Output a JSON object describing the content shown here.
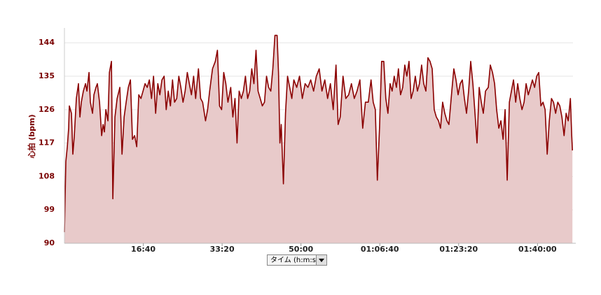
{
  "chart_data": {
    "type": "line",
    "y_label": "心拍 (bpm)",
    "x_selector": "タイム (h:m:s)",
    "color": "#8b0000",
    "fill_color": "#e8caca",
    "grid": true,
    "ylim": [
      90,
      148
    ],
    "yticks": [
      90,
      99,
      108,
      117,
      126,
      135,
      144
    ],
    "xlim": [
      0,
      6450
    ],
    "xticks": [
      {
        "value": 1000,
        "label": "16:40"
      },
      {
        "value": 2000,
        "label": "33:20"
      },
      {
        "value": 3000,
        "label": "50:00"
      },
      {
        "value": 4000,
        "label": "01:06:40"
      },
      {
        "value": 5000,
        "label": "01:23:20"
      },
      {
        "value": 6000,
        "label": "01:40:00"
      }
    ],
    "x": [
      0,
      18,
      36,
      53,
      62,
      89,
      107,
      125,
      151,
      178,
      196,
      214,
      240,
      267,
      285,
      312,
      329,
      356,
      374,
      400,
      418,
      445,
      472,
      490,
      507,
      525,
      552,
      570,
      596,
      614,
      641,
      668,
      703,
      730,
      757,
      783,
      810,
      837,
      863,
      890,
      917,
      943,
      970,
      997,
      1023,
      1050,
      1077,
      1104,
      1130,
      1157,
      1184,
      1210,
      1237,
      1264,
      1291,
      1317,
      1344,
      1371,
      1397,
      1424,
      1451,
      1477,
      1504,
      1531,
      1558,
      1584,
      1611,
      1638,
      1664,
      1700,
      1727,
      1753,
      1789,
      1816,
      1842,
      1878,
      1914,
      1940,
      1967,
      1994,
      2020,
      2047,
      2074,
      2109,
      2136,
      2163,
      2189,
      2216,
      2243,
      2270,
      2296,
      2323,
      2350,
      2376,
      2403,
      2430,
      2456,
      2483,
      2510,
      2537,
      2563,
      2590,
      2617,
      2643,
      2670,
      2697,
      2715,
      2733,
      2750,
      2777,
      2804,
      2830,
      2857,
      2884,
      2910,
      2946,
      2982,
      3017,
      3053,
      3088,
      3124,
      3160,
      3195,
      3231,
      3266,
      3302,
      3338,
      3373,
      3409,
      3444,
      3471,
      3498,
      3533,
      3569,
      3605,
      3640,
      3676,
      3711,
      3747,
      3783,
      3818,
      3854,
      3889,
      3916,
      3943,
      3969,
      3996,
      4023,
      4050,
      4076,
      4103,
      4130,
      4156,
      4183,
      4210,
      4236,
      4263,
      4290,
      4317,
      4343,
      4370,
      4397,
      4423,
      4450,
      4477,
      4503,
      4530,
      4557,
      4584,
      4610,
      4637,
      4664,
      4690,
      4717,
      4744,
      4770,
      4797,
      4824,
      4851,
      4877,
      4913,
      4939,
      4966,
      4993,
      5020,
      5046,
      5073,
      5100,
      5126,
      5153,
      5180,
      5207,
      5233,
      5260,
      5287,
      5313,
      5340,
      5376,
      5402,
      5429,
      5456,
      5482,
      5509,
      5536,
      5563,
      5589,
      5616,
      5643,
      5669,
      5696,
      5723,
      5749,
      5776,
      5803,
      5830,
      5856,
      5883,
      5910,
      5936,
      5963,
      5990,
      6016,
      6043,
      6070,
      6096,
      6123,
      6150,
      6177,
      6203,
      6230,
      6257,
      6283,
      6310,
      6337,
      6363,
      6390,
      6417,
      6434,
      6443
    ],
    "values": [
      93,
      112,
      116,
      121,
      127,
      125,
      114,
      119,
      129,
      133,
      124,
      128,
      131,
      133,
      131,
      136,
      128,
      125,
      130,
      132,
      133,
      128,
      119,
      122,
      120,
      126,
      123,
      136,
      139,
      102,
      124,
      129,
      132,
      114,
      124,
      128,
      132,
      134,
      118,
      119,
      116,
      130,
      129,
      131,
      133,
      132,
      134,
      129,
      135,
      125,
      133,
      130,
      134,
      135,
      126,
      131,
      127,
      134,
      128,
      129,
      135,
      132,
      128,
      131,
      136,
      133,
      130,
      135,
      129,
      137,
      129,
      128,
      123,
      126,
      131,
      137,
      139,
      142,
      127,
      126,
      136,
      133,
      128,
      132,
      124,
      129,
      117,
      131,
      129,
      131,
      135,
      129,
      131,
      137,
      133,
      142,
      131,
      129,
      127,
      128,
      135,
      132,
      131,
      137,
      146,
      146,
      136,
      117,
      122,
      106,
      125,
      135,
      132,
      129,
      134,
      132,
      135,
      129,
      133,
      132,
      134,
      131,
      135,
      137,
      131,
      134,
      129,
      133,
      126,
      138,
      122,
      124,
      135,
      129,
      130,
      133,
      129,
      131,
      134,
      121,
      128,
      128,
      134,
      128,
      126,
      107,
      121,
      139,
      139,
      129,
      125,
      133,
      131,
      135,
      132,
      137,
      130,
      132,
      138,
      135,
      139,
      129,
      131,
      135,
      131,
      133,
      138,
      133,
      131,
      140,
      139,
      137,
      126,
      124,
      123,
      121,
      128,
      125,
      123,
      122,
      131,
      137,
      134,
      130,
      133,
      134,
      129,
      125,
      131,
      139,
      133,
      125,
      117,
      132,
      128,
      125,
      131,
      132,
      138,
      136,
      133,
      126,
      121,
      123,
      118,
      126,
      107,
      128,
      131,
      134,
      128,
      133,
      129,
      126,
      128,
      133,
      130,
      132,
      134,
      132,
      135,
      136,
      127,
      128,
      126,
      114,
      123,
      129,
      128,
      125,
      128,
      127,
      124,
      119,
      125,
      123,
      129,
      119,
      115
    ]
  }
}
